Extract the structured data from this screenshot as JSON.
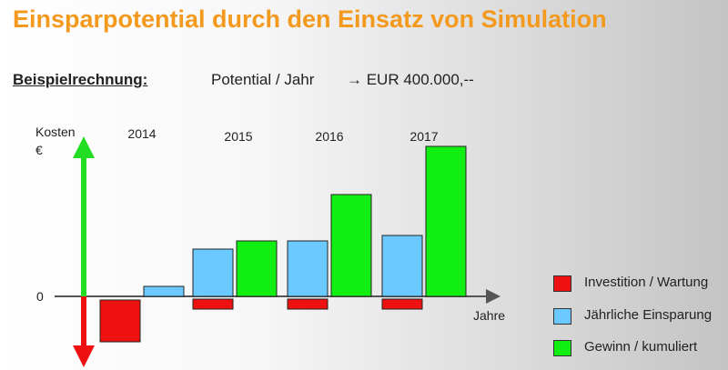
{
  "title": "Einsparpotential durch den Einsatz von Simulation",
  "subtitle": {
    "label": "Beispielrechnung:",
    "potential": "Potential / Jahr",
    "value": "→ EUR  400.000,--"
  },
  "colors": {
    "investition": "#ee1111",
    "einsparung": "#6cc9ff",
    "gewinn": "#11ee11",
    "arrow_up": "#22dd22",
    "arrow_down": "#ee1111"
  },
  "chart_data": {
    "type": "bar",
    "title": "",
    "ylabel_lines": [
      "Kosten",
      "€"
    ],
    "xlabel": "Jahre",
    "zero_label": "0",
    "axis_note": "no numeric y-axis scale; values are relative bar heights",
    "categories": [
      "2014",
      "2015",
      "2016",
      "2017"
    ],
    "ylim": [
      -80,
      170
    ],
    "series": [
      {
        "name": "Investition / Wartung",
        "values": [
          -46,
          -11,
          -11,
          -11
        ]
      },
      {
        "name": "Jährliche Einsparung",
        "values": [
          11,
          52,
          61,
          67
        ]
      },
      {
        "name": "Gewinn / kumuliert",
        "values": [
          null,
          61,
          112,
          165
        ]
      }
    ],
    "legend_position": "right"
  },
  "legend": [
    {
      "label": "Investition / Wartung",
      "color": "#ee1111"
    },
    {
      "label": "Jährliche Einsparung",
      "color": "#6cc9ff"
    },
    {
      "label": "Gewinn / kumuliert",
      "color": "#11ee11"
    }
  ]
}
